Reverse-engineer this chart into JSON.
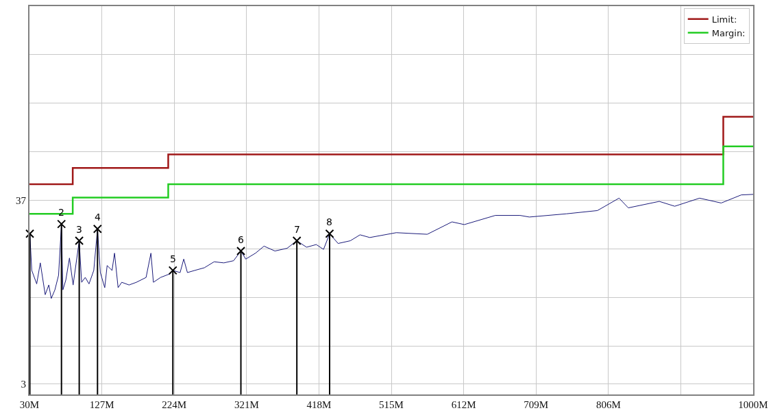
{
  "chart_data": {
    "type": "line",
    "xlim": [
      30,
      1000
    ],
    "xticks": [
      {
        "value": 30,
        "label": "30M"
      },
      {
        "value": 127,
        "label": "127M"
      },
      {
        "value": 224,
        "label": "224M"
      },
      {
        "value": 321,
        "label": "321M"
      },
      {
        "value": 418,
        "label": "418M"
      },
      {
        "value": 515,
        "label": "515M"
      },
      {
        "value": 612,
        "label": "612M"
      },
      {
        "value": 709,
        "label": "709M"
      },
      {
        "value": 806,
        "label": "806M"
      },
      {
        "value": 903,
        "label": null
      },
      {
        "value": 1000,
        "label": "1000M"
      }
    ],
    "ylim": [
      1,
      73
    ],
    "yticks": [
      {
        "value": 1,
        "label": null
      },
      3,
      {
        "value": 10,
        "label": null
      },
      {
        "value": 19,
        "label": null
      },
      {
        "value": 28,
        "label": null
      },
      37,
      {
        "value": 46,
        "label": null
      },
      {
        "value": 55,
        "label": null
      },
      {
        "value": 64,
        "label": null
      },
      {
        "value": 73,
        "label": null
      }
    ],
    "grid": true,
    "legend": "top right",
    "series": [
      {
        "color": "#1a1a7a",
        "marker": "none",
        "x": [
          30.5,
          33.1,
          39.7,
          44.5,
          51.1,
          55.9,
          59.2,
          64.1,
          69.0,
          72.9,
          74.8,
          78.7,
          83.6,
          88.5,
          96.7,
          99.9,
          104.8,
          109.8,
          116.2,
          121.2,
          125.0,
          130.9,
          134.1,
          140.7,
          144.0,
          148.8,
          153.7,
          163.5,
          173.3,
          186.3,
          192.8,
          196.1,
          205.8,
          218.9,
          222.2,
          231.9,
          236.8,
          241.7,
          251.5,
          264.5,
          277.5,
          290.6,
          303.6,
          313.4,
          319.9,
          333.0,
          344.4,
          359.0,
          375.3,
          388.4,
          401.4,
          414.4,
          424.2,
          432.3,
          443.7,
          460.1,
          473.1,
          486.2,
          521.7,
          563.2,
          596.3,
          612.9,
          654.4,
          687.6,
          700.0,
          749.8,
          791.3,
          820.3,
          832.7,
          874.2,
          894.9,
          928.2,
          957.2,
          984.1,
          1000
        ],
        "values": [
          30.8,
          24.0,
          21.5,
          25.4,
          19.5,
          21.3,
          18.8,
          20.4,
          23.1,
          32.6,
          20.4,
          22.2,
          26.3,
          21.3,
          29.5,
          21.8,
          22.7,
          21.5,
          24.0,
          31.7,
          23.6,
          20.8,
          24.9,
          24.0,
          27.2,
          20.8,
          21.8,
          21.3,
          21.8,
          22.7,
          27.2,
          21.8,
          22.7,
          23.4,
          24.0,
          23.6,
          26.1,
          23.6,
          24.0,
          24.5,
          25.6,
          25.4,
          25.8,
          27.6,
          26.1,
          27.2,
          28.5,
          27.6,
          28.1,
          29.5,
          28.3,
          28.8,
          27.9,
          30.8,
          29.0,
          29.5,
          30.6,
          30.1,
          31.0,
          30.7,
          33.0,
          32.5,
          34.2,
          34.2,
          33.9,
          34.5,
          35.1,
          37.4,
          35.6,
          36.8,
          35.9,
          37.4,
          36.5,
          38.0,
          38.1
        ]
      },
      {
        "type": "step",
        "name": "Limit:",
        "color": "#a01818",
        "x": [
          30,
          88,
          216,
          960,
          1000
        ],
        "values": [
          40,
          43,
          45.5,
          52.5,
          52.5
        ]
      },
      {
        "type": "step",
        "name": "Margin:",
        "color": "#22cc22",
        "x": [
          30,
          88,
          216,
          960,
          1000
        ],
        "values": [
          34.5,
          37.5,
          40,
          47,
          47
        ]
      },
      {
        "type": "lollipop",
        "color": "#000000",
        "marker": "cross",
        "x": [
          30.5,
          72.9,
          96.7,
          121.2,
          222.2,
          313.4,
          388.4,
          432.3
        ],
        "values": [
          30.8,
          32.6,
          29.5,
          31.7,
          24.0,
          27.6,
          29.5,
          30.8
        ]
      }
    ],
    "annotations": [
      {
        "text": "2",
        "x": 72.9,
        "y": 32.6
      },
      {
        "text": "3",
        "x": 96.7,
        "y": 29.5
      },
      {
        "text": "4",
        "x": 121.2,
        "y": 31.7
      },
      {
        "text": "5",
        "x": 222.2,
        "y": 24.0
      },
      {
        "text": "6",
        "x": 313.4,
        "y": 27.6
      },
      {
        "text": "7",
        "x": 388.4,
        "y": 29.5
      },
      {
        "text": "8",
        "x": 432.3,
        "y": 30.8
      }
    ]
  }
}
